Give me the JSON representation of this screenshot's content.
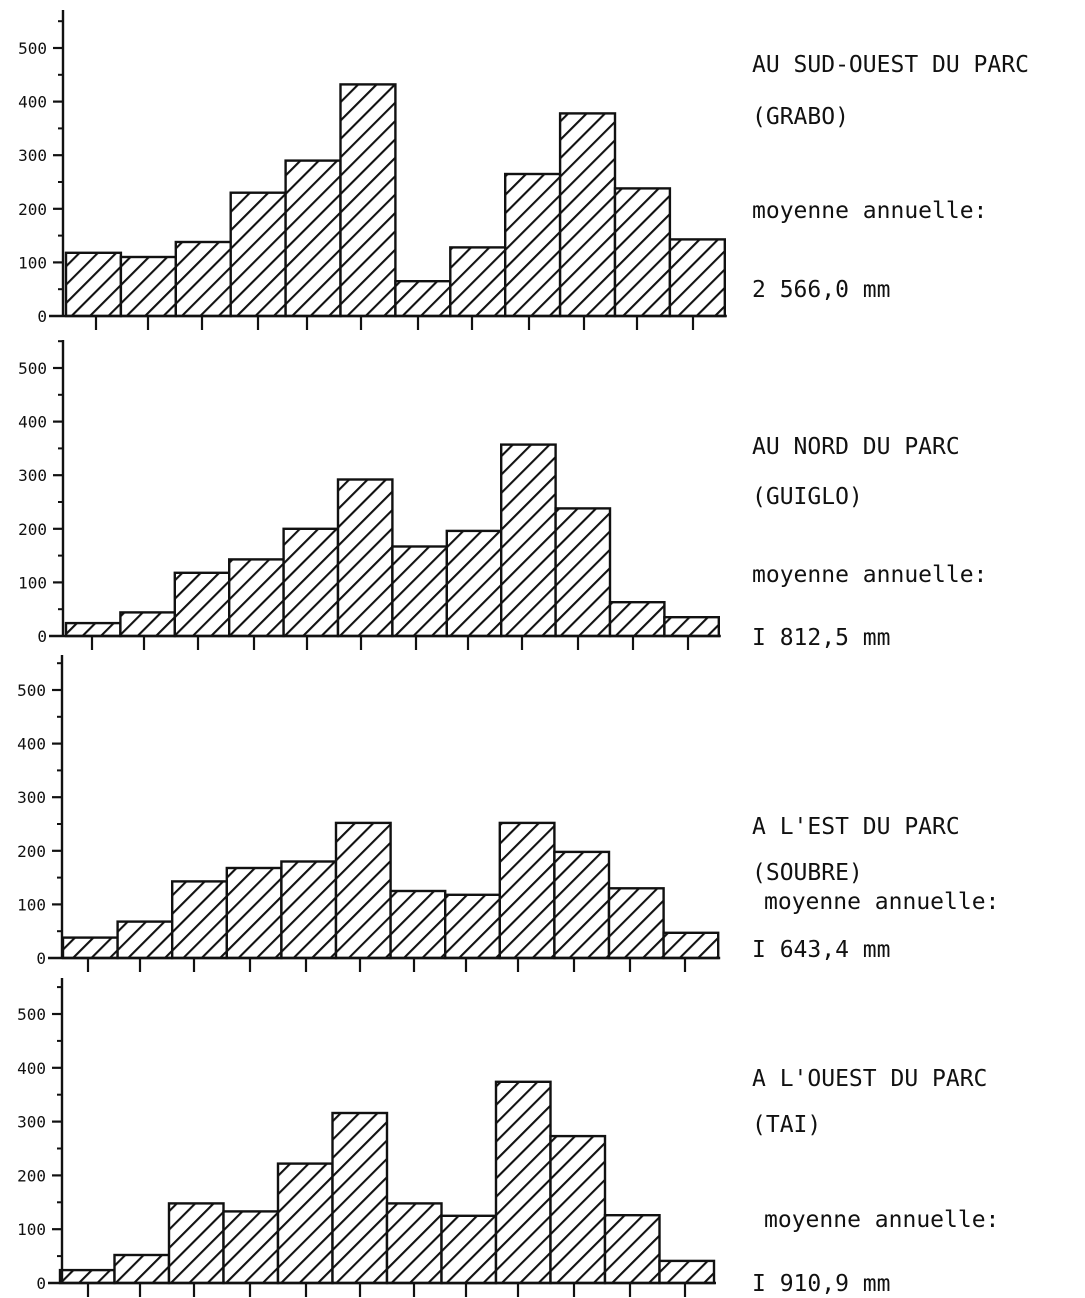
{
  "chart_data": [
    {
      "type": "bar",
      "title": "AU SUD-OUEST DU PARC",
      "subtitle": "(GRABO)",
      "annotation_label": "moyenne annuelle:",
      "annotation_value": "2 566,0 mm",
      "yticks": [
        "0",
        "100",
        "200",
        "300",
        "400",
        "500"
      ],
      "ylim": [
        0,
        560
      ],
      "grid": false,
      "values": [
        118,
        110,
        138,
        230,
        290,
        432,
        65,
        128,
        265,
        378,
        238,
        143
      ]
    },
    {
      "type": "bar",
      "title": "AU NORD DU PARC",
      "subtitle": "(GUIGLO)",
      "annotation_label": "moyenne annuelle:",
      "annotation_value": "I 812,5 mm",
      "yticks": [
        "0",
        "100",
        "200",
        "300",
        "400",
        "500"
      ],
      "ylim": [
        0,
        560
      ],
      "grid": false,
      "values": [
        24,
        44,
        118,
        143,
        200,
        292,
        167,
        196,
        357,
        238,
        63,
        35
      ]
    },
    {
      "type": "bar",
      "title": "A L'EST DU PARC",
      "subtitle": "(SOUBRE)",
      "annotation_label": "moyenne annuelle:",
      "annotation_value": "I 643,4 mm",
      "yticks": [
        "0",
        "100",
        "200",
        "300",
        "400",
        "500"
      ],
      "ylim": [
        0,
        560
      ],
      "grid": false,
      "values": [
        38,
        68,
        143,
        168,
        180,
        252,
        125,
        118,
        252,
        198,
        130,
        47
      ]
    },
    {
      "type": "bar",
      "title": "A L'OUEST DU PARC",
      "subtitle": "(TAI)",
      "annotation_label": "moyenne annuelle:",
      "annotation_value": "I 910,9 mm",
      "yticks": [
        "0",
        "100",
        "200",
        "300",
        "400",
        "500"
      ],
      "ylim": [
        0,
        560
      ],
      "grid": false,
      "values": [
        24,
        52,
        148,
        133,
        222,
        316,
        148,
        125,
        374,
        273,
        126,
        41
      ]
    }
  ]
}
